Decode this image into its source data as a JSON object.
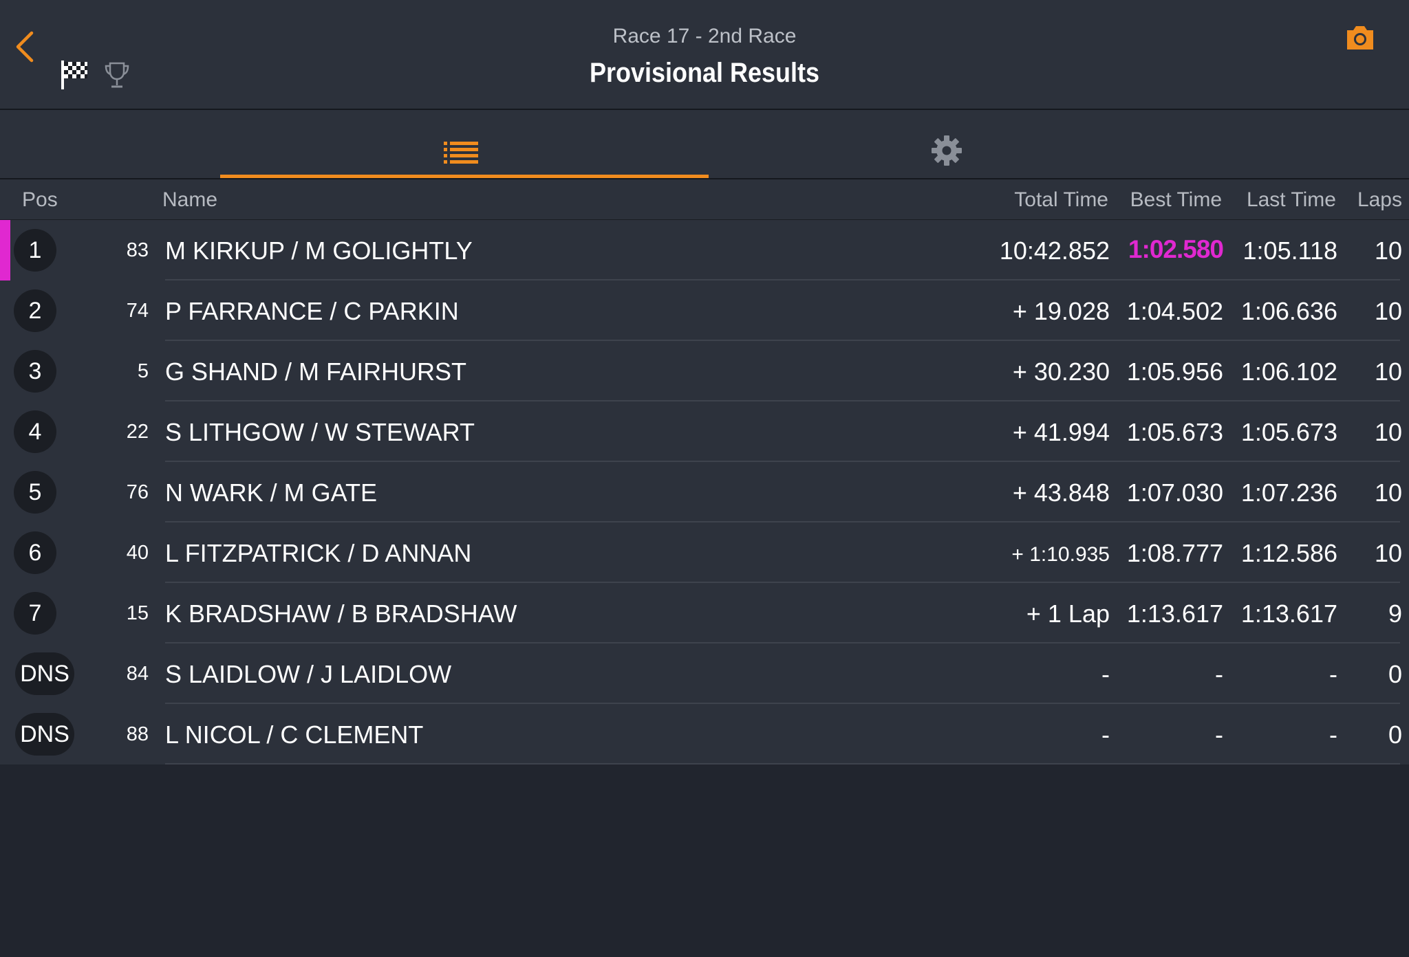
{
  "header": {
    "subtitle": "Race 17 - 2nd Race",
    "title": "Provisional Results"
  },
  "icons": {
    "back": "chevron-left-icon",
    "flag": "checkered-flag-icon",
    "trophy": "trophy-icon",
    "camera": "camera-icon",
    "list": "list-icon",
    "gear": "gear-icon"
  },
  "colors": {
    "accent": "#f08c1e",
    "fastest_lap": "#e028d0",
    "leader_marker": "#e028d0"
  },
  "columns": {
    "pos": "Pos",
    "name": "Name",
    "total": "Total Time",
    "best": "Best Time",
    "last": "Last Time",
    "laps": "Laps"
  },
  "results": [
    {
      "pos": "1",
      "num": "83",
      "name": "M KIRKUP / M GOLIGHTLY",
      "total": "10:42.852",
      "best": "1:02.580",
      "last": "1:05.118",
      "laps": "10"
    },
    {
      "pos": "2",
      "num": "74",
      "name": "P FARRANCE / C PARKIN",
      "total": "+ 19.028",
      "best": "1:04.502",
      "last": "1:06.636",
      "laps": "10"
    },
    {
      "pos": "3",
      "num": "5",
      "name": "G SHAND / M FAIRHURST",
      "total": "+ 30.230",
      "best": "1:05.956",
      "last": "1:06.102",
      "laps": "10"
    },
    {
      "pos": "4",
      "num": "22",
      "name": "S LITHGOW / W STEWART",
      "total": "+ 41.994",
      "best": "1:05.673",
      "last": "1:05.673",
      "laps": "10"
    },
    {
      "pos": "5",
      "num": "76",
      "name": "N WARK / M GATE",
      "total": "+ 43.848",
      "best": "1:07.030",
      "last": "1:07.236",
      "laps": "10"
    },
    {
      "pos": "6",
      "num": "40",
      "name": "L FITZPATRICK / D ANNAN",
      "total": "+ 1:10.935",
      "best": "1:08.777",
      "last": "1:12.586",
      "laps": "10"
    },
    {
      "pos": "7",
      "num": "15",
      "name": "K BRADSHAW / B BRADSHAW",
      "total": "+ 1 Lap",
      "best": "1:13.617",
      "last": "1:13.617",
      "laps": "9"
    },
    {
      "pos": "DNS",
      "num": "84",
      "name": "S LAIDLOW / J LAIDLOW",
      "total": "-",
      "best": "-",
      "last": "-",
      "laps": "0"
    },
    {
      "pos": "DNS",
      "num": "88",
      "name": "L NICOL / C CLEMENT",
      "total": "-",
      "best": "-",
      "last": "-",
      "laps": "0"
    }
  ]
}
